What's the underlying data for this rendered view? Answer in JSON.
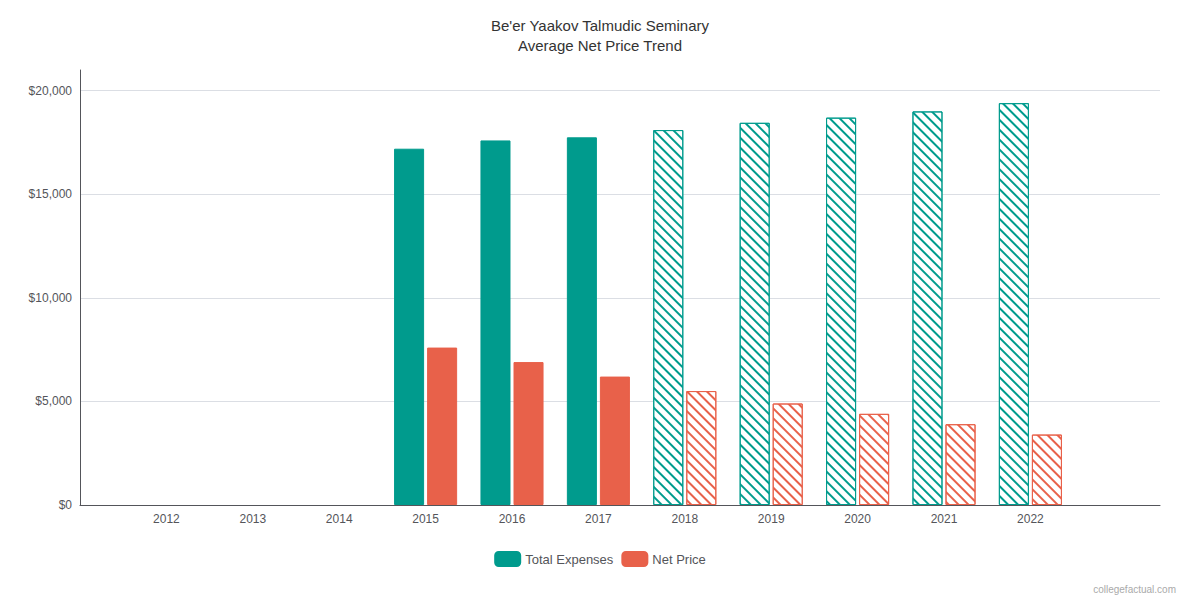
{
  "chart_data": {
    "type": "bar",
    "title": "Be'er Yaakov Talmudic Seminary\nAverage Net Price Trend",
    "x": [
      2015,
      2016,
      2017,
      2018,
      2019,
      2020,
      2021,
      2022
    ],
    "series": [
      {
        "name": "Total Expenses",
        "color": "#009B8D",
        "colors": [
          "#009B8D",
          "#009B8D",
          "#009B8D",
          "#ffffff",
          "#ffffff",
          "#ffffff",
          "#ffffff",
          "#ffffff"
        ],
        "values": [
          17200,
          17600,
          17750,
          18100,
          18450,
          18700,
          19000,
          19400
        ]
      },
      {
        "name": "Net Price",
        "color": "#E8614A",
        "colors": [
          "#E8614A",
          "#E8614A",
          "#E8614A",
          "#ffffff",
          "#ffffff",
          "#ffffff",
          "#ffffff",
          "#ffffff"
        ],
        "values": [
          7600,
          6900,
          6200,
          5500,
          4900,
          4400,
          3900,
          3400
        ]
      }
    ],
    "xlim": [
      2011.0,
      2023.5
    ],
    "xticks": [
      2012,
      2013,
      2014,
      2015,
      2016,
      2017,
      2018,
      2019,
      2020,
      2021,
      2022
    ],
    "ylim": [
      0,
      21000
    ],
    "yticks": [
      {
        "value": 0,
        "label": "$0"
      },
      {
        "value": 5000,
        "label": "$5,000"
      },
      {
        "value": 10000,
        "label": "$10,000"
      },
      {
        "value": 15000,
        "label": "$15,000"
      },
      {
        "value": 20000,
        "label": "$20,000"
      }
    ],
    "grid": true,
    "legend": "bottom",
    "annotations": [
      "collegefactual.com"
    ]
  }
}
